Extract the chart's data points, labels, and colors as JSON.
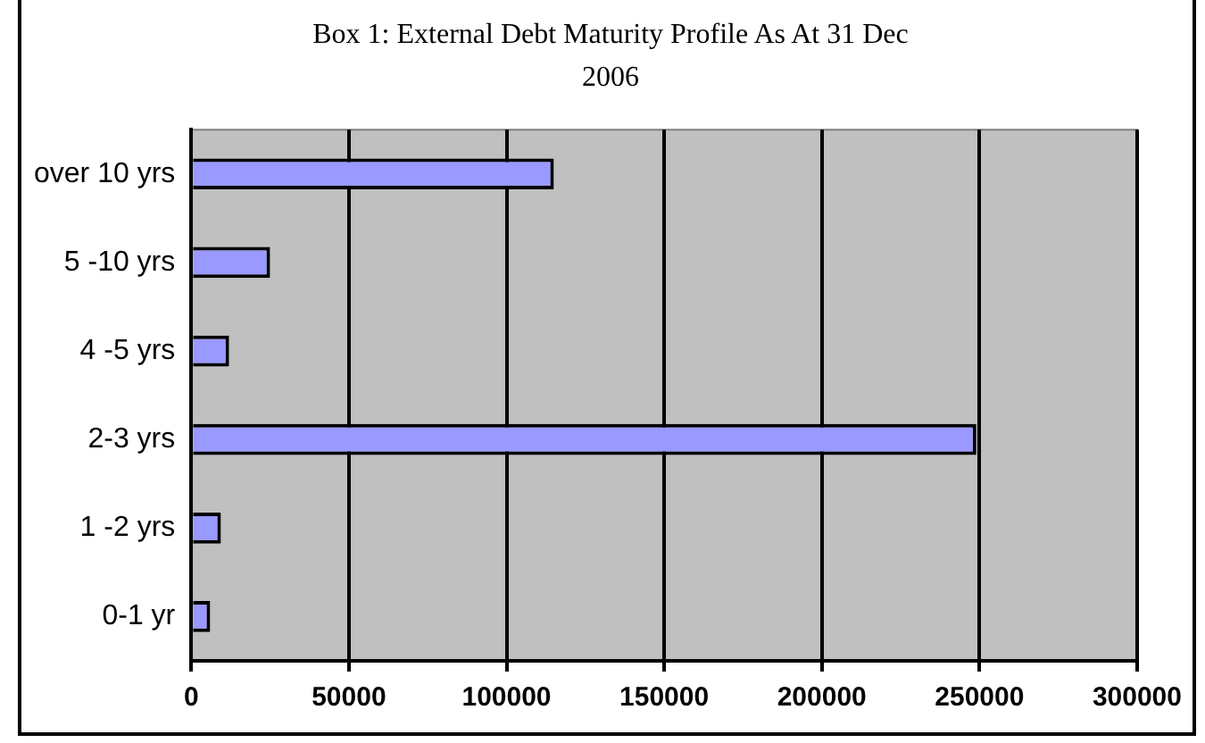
{
  "chart_data": {
    "type": "bar",
    "orientation": "horizontal",
    "title": "Box 1: External Debt Maturity Profile As At 31 Dec 2006",
    "categories": [
      "over 10 yrs",
      "5 -10 yrs",
      "4 -5 yrs",
      "2-3 yrs",
      "1 -2 yrs",
      "0-1 yr"
    ],
    "values": [
      115000,
      25000,
      12000,
      249000,
      9400,
      6000
    ],
    "color": "#9999ff",
    "xlim": [
      0,
      300000
    ],
    "xticks": [
      0,
      50000,
      100000,
      150000,
      200000,
      250000,
      300000
    ],
    "grid": "x",
    "legend": false
  }
}
